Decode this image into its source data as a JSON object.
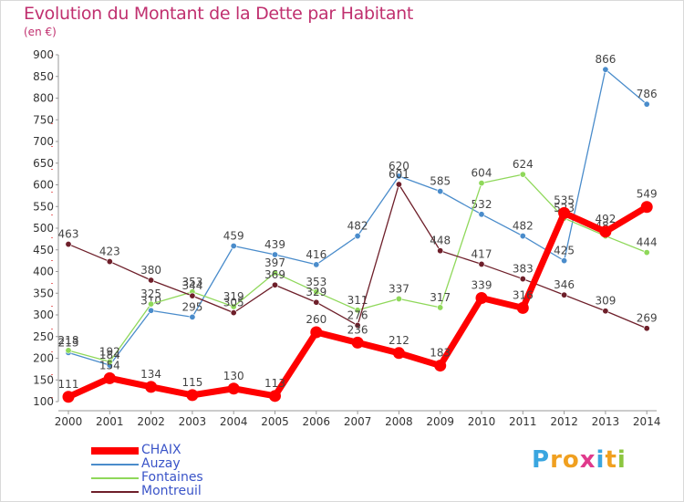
{
  "header": {
    "title": "Evolution du Montant de la Dette par Habitant",
    "unit": "(en €)"
  },
  "chart_data": {
    "type": "line",
    "title": "Evolution du Montant de la Dette par Habitant",
    "subtitle": "(en €)",
    "xlabel": "",
    "ylabel": "",
    "ylim": [
      100,
      900
    ],
    "yticks": [
      100,
      150,
      200,
      250,
      300,
      350,
      400,
      450,
      500,
      550,
      600,
      650,
      700,
      750,
      800,
      850,
      900
    ],
    "grid": false,
    "legend_placement": "bottom-left",
    "x": [
      "2000",
      "2001",
      "2002",
      "2003",
      "2004",
      "2005",
      "2006",
      "2007",
      "2008",
      "2009",
      "2010",
      "2011",
      "2012",
      "2013",
      "2014"
    ],
    "series": [
      {
        "name": "Auzay",
        "color": "#4a8ccb",
        "values": [
          213,
          184,
          310,
          295,
          459,
          439,
          416,
          482,
          620,
          585,
          532,
          482,
          425,
          866,
          786
        ]
      },
      {
        "name": "Fontaines",
        "color": "#8fd85a",
        "values": [
          218,
          192,
          325,
          353,
          319,
          397,
          353,
          311,
          337,
          317,
          604,
          624,
          523,
          482,
          444
        ]
      },
      {
        "name": "Montreuil",
        "color": "#6e1f2a",
        "values": [
          463,
          423,
          380,
          344,
          305,
          369,
          329,
          276,
          601,
          448,
          417,
          383,
          346,
          309,
          269
        ]
      },
      {
        "name": "CHAIX",
        "color": "#ff0000",
        "values": [
          111,
          154,
          134,
          115,
          130,
          113,
          260,
          236,
          212,
          183,
          339,
          316,
          535,
          492,
          549
        ]
      }
    ]
  },
  "legend": {
    "items": [
      {
        "label": "CHAIX",
        "color": "#ff0000"
      },
      {
        "label": "Auzay",
        "color": "#4a8ccb"
      },
      {
        "label": "Fontaines",
        "color": "#8fd85a"
      },
      {
        "label": "Montreuil",
        "color": "#6e1f2a"
      }
    ]
  },
  "logo": {
    "text": "Proxiti",
    "letter_colors": [
      "#3aa6e0",
      "#f0a020",
      "#f0a020",
      "#e03a8c",
      "#3aa6e0",
      "#f0a020",
      "#8cc63f"
    ]
  }
}
